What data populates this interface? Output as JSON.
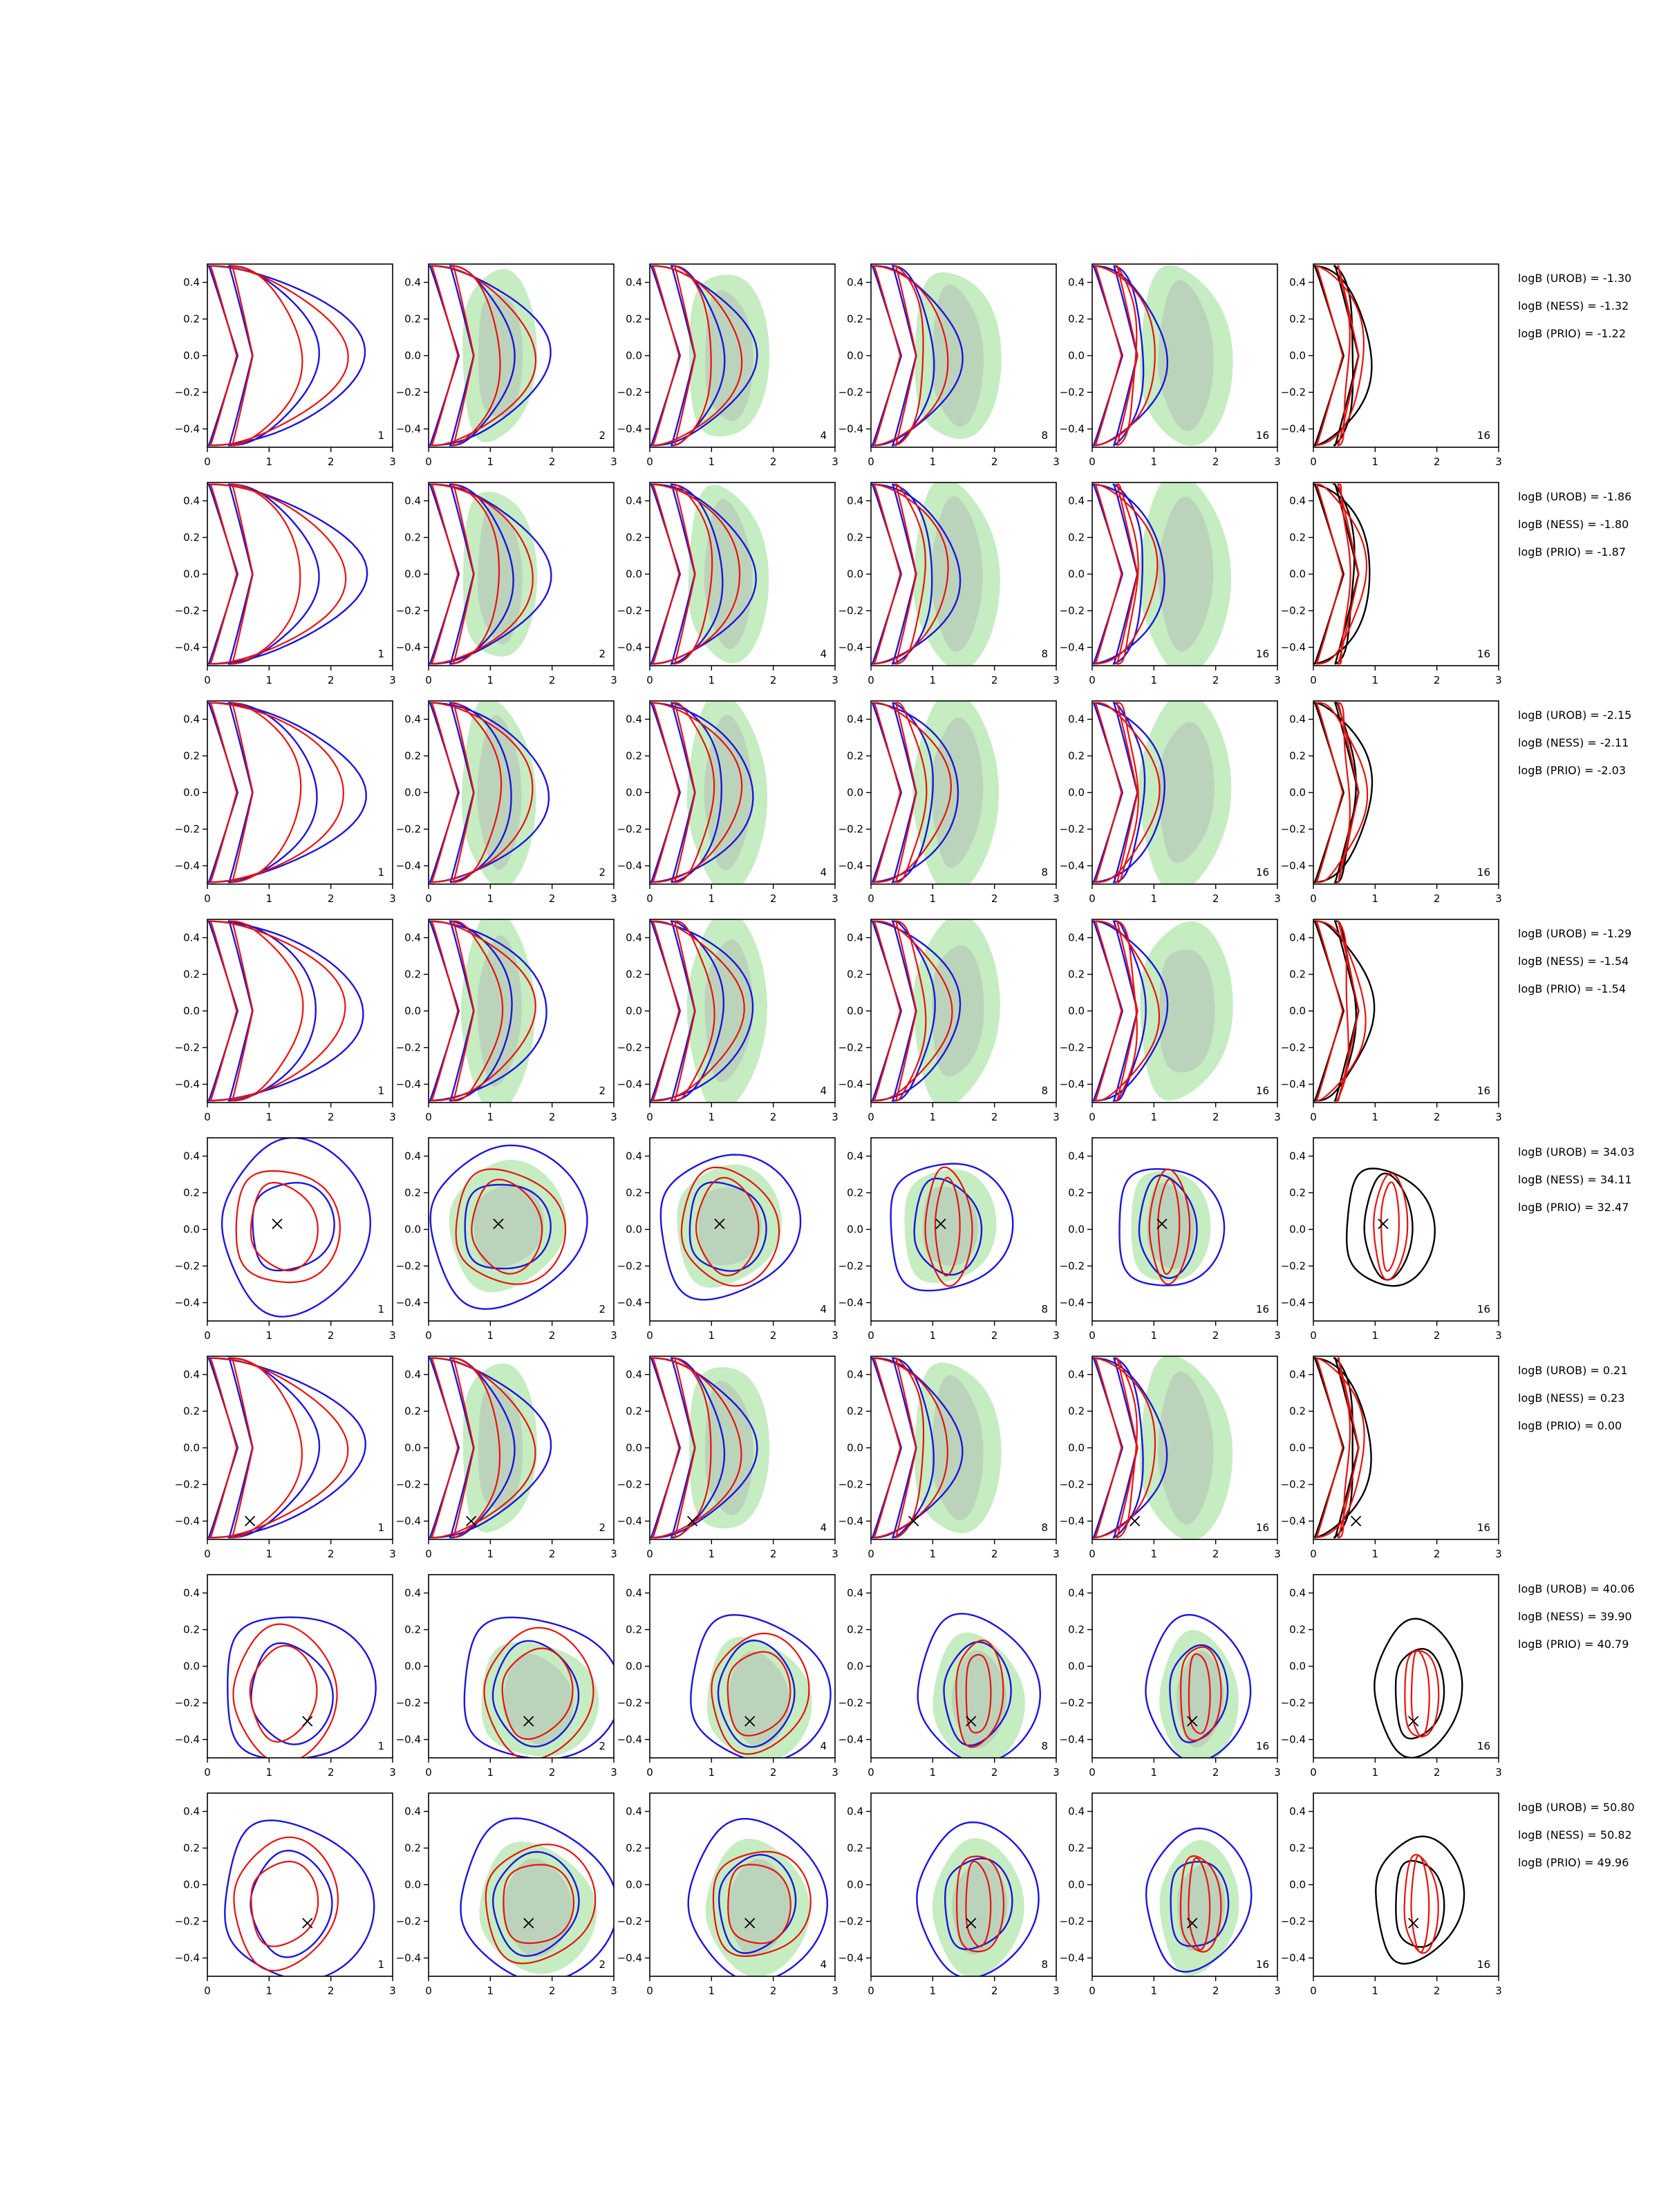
{
  "chart_data": {
    "type": "contour",
    "xlim": [
      0,
      3
    ],
    "ylim": [
      -0.5,
      0.5
    ],
    "x_ticks": [
      0,
      1,
      2,
      3
    ],
    "y_ticks": [
      0.4,
      0.2,
      0.0,
      -0.2,
      -0.4
    ],
    "x_tick_labels": [
      "0",
      "1",
      "2",
      "3"
    ],
    "y_tick_labels": [
      "0.4",
      "0.2",
      "0.0",
      "−0.2",
      "−0.4"
    ],
    "columns": [
      {
        "label": "1",
        "base": "blue",
        "filled": false
      },
      {
        "label": "2",
        "base": "blue",
        "filled": true
      },
      {
        "label": "4",
        "base": "blue",
        "filled": true
      },
      {
        "label": "8",
        "base": "blue",
        "filled": true
      },
      {
        "label": "16",
        "base": "blue",
        "filled": true
      },
      {
        "label": "16",
        "base": "black",
        "filled": false
      }
    ],
    "colors": {
      "red": "#e8120e",
      "blue": "#1b15dd",
      "black": "#000000",
      "fill_light": "#c6ecc2",
      "fill_dark": "#bcd3bb"
    },
    "rows": [
      {
        "truth": null,
        "shape": "crescent",
        "annotations": [
          "logB (UROB) = -1.30",
          "logB (NESS) = -1.32",
          "logB (PRIO) = -1.22"
        ]
      },
      {
        "truth": null,
        "shape": "crescent",
        "annotations": [
          "logB (UROB) = -1.86",
          "logB (NESS) = -1.80",
          "logB (PRIO) = -1.87"
        ]
      },
      {
        "truth": null,
        "shape": "crescent",
        "annotations": [
          "logB (UROB) = -2.15",
          "logB (NESS) = -2.11",
          "logB (PRIO) = -2.03"
        ]
      },
      {
        "truth": null,
        "shape": "crescent",
        "annotations": [
          "logB (UROB) = -1.29",
          "logB (NESS) = -1.54",
          "logB (PRIO) = -1.54"
        ]
      },
      {
        "truth": [
          1.13,
          0.03
        ],
        "shape": "central",
        "annotations": [
          "logB (UROB) = 34.03",
          "logB (NESS) = 34.11",
          "logB (PRIO) = 32.47"
        ]
      },
      {
        "truth": [
          0.69,
          -0.4
        ],
        "shape": "crescent",
        "annotations": [
          "logB (UROB) = 0.21",
          "logB (NESS) = 0.23",
          "logB (PRIO) = 0.00"
        ]
      },
      {
        "truth": [
          1.62,
          -0.3
        ],
        "shape": "central",
        "annotations": [
          "logB (UROB) = 40.06",
          "logB (NESS) = 39.90",
          "logB (PRIO) = 40.79"
        ]
      },
      {
        "truth": [
          1.62,
          -0.21
        ],
        "shape": "central",
        "annotations": [
          "logB (UROB) = 50.80",
          "logB (NESS) = 50.82",
          "logB (PRIO) = 49.96"
        ]
      }
    ]
  }
}
